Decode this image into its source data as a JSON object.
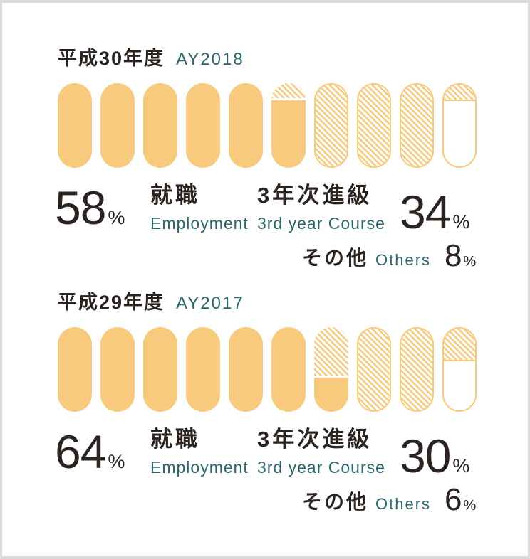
{
  "labels": {
    "percent": "%"
  },
  "colors": {
    "capsule_orange": "#f8ca7d",
    "teal_accent": "#2a676c",
    "text_dark": "#2a2320",
    "frame_gray": "#dbdbdb",
    "card_white": "#ffffff"
  },
  "chart_data": [
    {
      "type": "pictograph-capsules",
      "title_jp": "平成30年度",
      "title_en": "AY2018",
      "units_total": 10,
      "unit_value_pct": 10,
      "legend_note": "solid = employment, hatched = 3rd year course, empty outline = others",
      "series": [
        {
          "name_jp": "就職",
          "name_en": "Employment",
          "value_pct": 58,
          "style": "solid"
        },
        {
          "name_jp": "3年次進級",
          "name_en": "3rd year Course",
          "value_pct": 34,
          "style": "hatched"
        },
        {
          "name_jp": "その他",
          "name_en": "Others",
          "value_pct": 8,
          "style": "empty"
        }
      ]
    },
    {
      "type": "pictograph-capsules",
      "title_jp": "平成29年度",
      "title_en": "AY2017",
      "units_total": 10,
      "unit_value_pct": 10,
      "legend_note": "solid = employment, hatched = 3rd year course, empty outline = others",
      "series": [
        {
          "name_jp": "就職",
          "name_en": "Employment",
          "value_pct": 64,
          "style": "solid"
        },
        {
          "name_jp": "3年次進級",
          "name_en": "3rd year Course",
          "value_pct": 30,
          "style": "hatched"
        },
        {
          "name_jp": "その他",
          "name_en": "Others",
          "value_pct": 6,
          "style": "empty"
        }
      ]
    }
  ]
}
